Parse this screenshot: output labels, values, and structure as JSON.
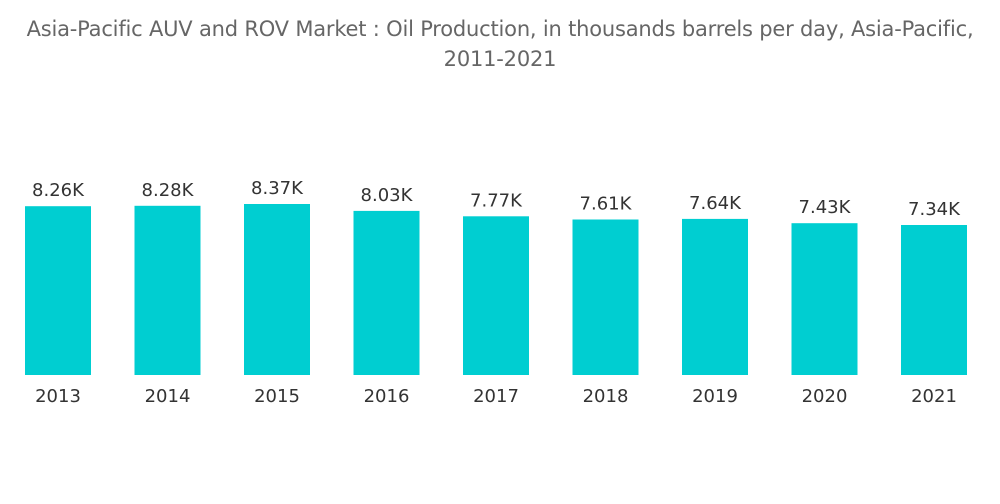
{
  "chart_data": {
    "type": "bar",
    "title": "Asia-Pacific AUV and ROV Market : Oil Production, in thousands barrels per day, Asia-Pacific, 2011-2021",
    "title_line1": "Asia-Pacific AUV and ROV Market : Oil Production, in thousands barrels per day, Asia-Pacific,",
    "title_line2": "2011-2021",
    "xlabel": "",
    "ylabel": "",
    "categories": [
      "2013",
      "2014",
      "2015",
      "2016",
      "2017",
      "2018",
      "2019",
      "2020",
      "2021"
    ],
    "values": [
      8.26,
      8.28,
      8.37,
      8.03,
      7.77,
      7.61,
      7.64,
      7.43,
      7.34
    ],
    "data_labels": [
      "8.26K",
      "8.28K",
      "8.37K",
      "8.03K",
      "7.77K",
      "7.61K",
      "7.64K",
      "7.43K",
      "7.34K"
    ],
    "ylim": [
      0,
      8.37
    ],
    "grid": false,
    "legend": "none",
    "bar_color": "#00CED1"
  }
}
